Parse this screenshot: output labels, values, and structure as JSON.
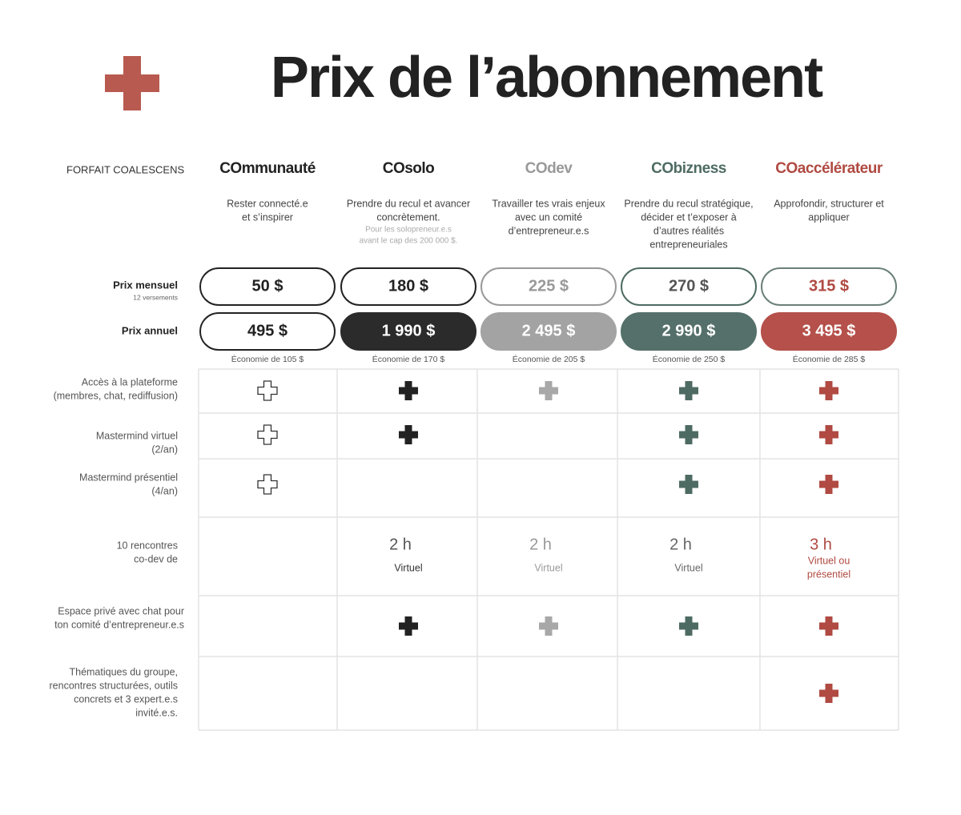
{
  "header": {
    "title": "Prix de l’abonnement"
  },
  "table": {
    "corner": "FORFAIT COALESCENS",
    "plans": [
      {
        "name": "COmmunauté",
        "description": [
          "Rester connecté.e",
          "et s’inspirer"
        ]
      },
      {
        "name": "COsolo",
        "description": [
          "Prendre du recul et avancer",
          "concrètement."
        ],
        "note": [
          "Pour les solopreneur.e.s",
          "avant le cap des 200 000 $."
        ]
      },
      {
        "name": "COdev",
        "description": [
          "Travailler tes vrais enjeux",
          "avec un comité",
          "d’entrepreneur.e.s"
        ]
      },
      {
        "name": "CObizness",
        "description": [
          "Prendre du recul stratégique,",
          "décider et t’exposer à",
          "d’autres réalités",
          "entrepreneuriales"
        ]
      },
      {
        "name": "COaccélérateur",
        "description": [
          "Approfondir, structurer et",
          "appliquer"
        ]
      }
    ],
    "monthly": {
      "label": "Prix mensuel",
      "sublabel": "12 versements",
      "prices": [
        "50 $",
        "180 $",
        "225 $",
        "270 $",
        "315 $"
      ]
    },
    "annual": {
      "label": "Prix annuel",
      "prices": [
        "495 $",
        "1 990 $",
        "2 495 $",
        "2 990 $",
        "3 495 $"
      ],
      "savings": [
        "Économie de 105 $",
        "Économie de 170 $",
        "Économie de 205 $",
        "Économie de 250 $",
        "Économie de 285 $"
      ]
    },
    "features": [
      {
        "label": [
          "Accès à la plateforme",
          "(membres, chat, rediffusion)"
        ]
      },
      {
        "label": [
          "Mastermind virtuel",
          "(2/an)"
        ]
      },
      {
        "label": [
          "Mastermind présentiel",
          "(4/an)"
        ]
      },
      {
        "label": [
          "10 rencontres",
          "co-dev de"
        ],
        "cells": [
          null,
          {
            "duration": "2 h",
            "mode": [
              "Virtuel"
            ]
          },
          {
            "duration": "2 h",
            "mode": [
              "Virtuel"
            ]
          },
          {
            "duration": "2 h",
            "mode": [
              "Virtuel"
            ]
          },
          {
            "duration": "3 h",
            "mode": [
              "Virtuel ou",
              "présentiel"
            ]
          }
        ]
      },
      {
        "label": [
          "Espace privé avec chat pour",
          "ton comité d’entrepreneur.e.s"
        ]
      },
      {
        "label": [
          "Thématiques du groupe,",
          "rencontres structurées, outils",
          "concrets et 3 expert.e.s",
          "invité.e.s."
        ]
      }
    ]
  }
}
